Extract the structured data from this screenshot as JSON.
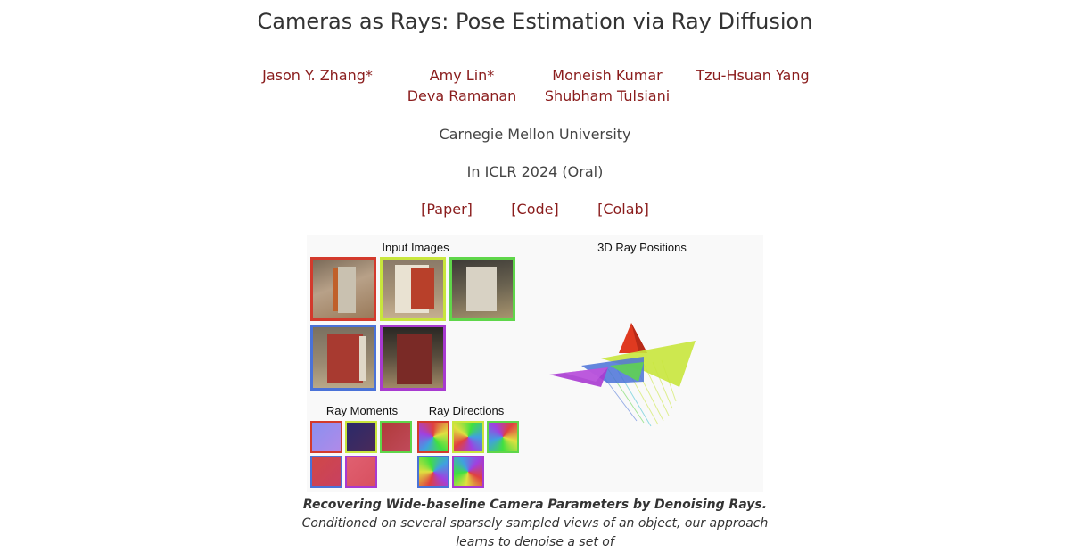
{
  "header": {
    "title": "Cameras as Rays: Pose Estimation via Ray Diffusion"
  },
  "authors": [
    "Jason Y. Zhang*",
    "Amy Lin*",
    "Moneish Kumar",
    "Tzu-Hsuan Yang",
    "Deva Ramanan",
    "Shubham Tulsiani"
  ],
  "affiliation": "Carnegie Mellon University",
  "venue": "In ICLR 2024 (Oral)",
  "links": {
    "paper": "[Paper]",
    "code": "[Code]",
    "colab": "[Colab]"
  },
  "figure": {
    "input_images_label": "Input Images",
    "ray_positions_label": "3D Ray Positions",
    "ray_moments_label": "Ray Moments",
    "ray_directions_label": "Ray Directions",
    "camera_colors": [
      "#d33a2c",
      "#c8e63c",
      "#5fd64a",
      "#4a72d8",
      "#a83ad0"
    ]
  },
  "caption": {
    "bold": "Recovering Wide-baseline Camera Parameters by Denoising Rays.",
    "text": " Conditioned on several sparsely sampled views of an object, our approach learns to denoise a set of"
  }
}
